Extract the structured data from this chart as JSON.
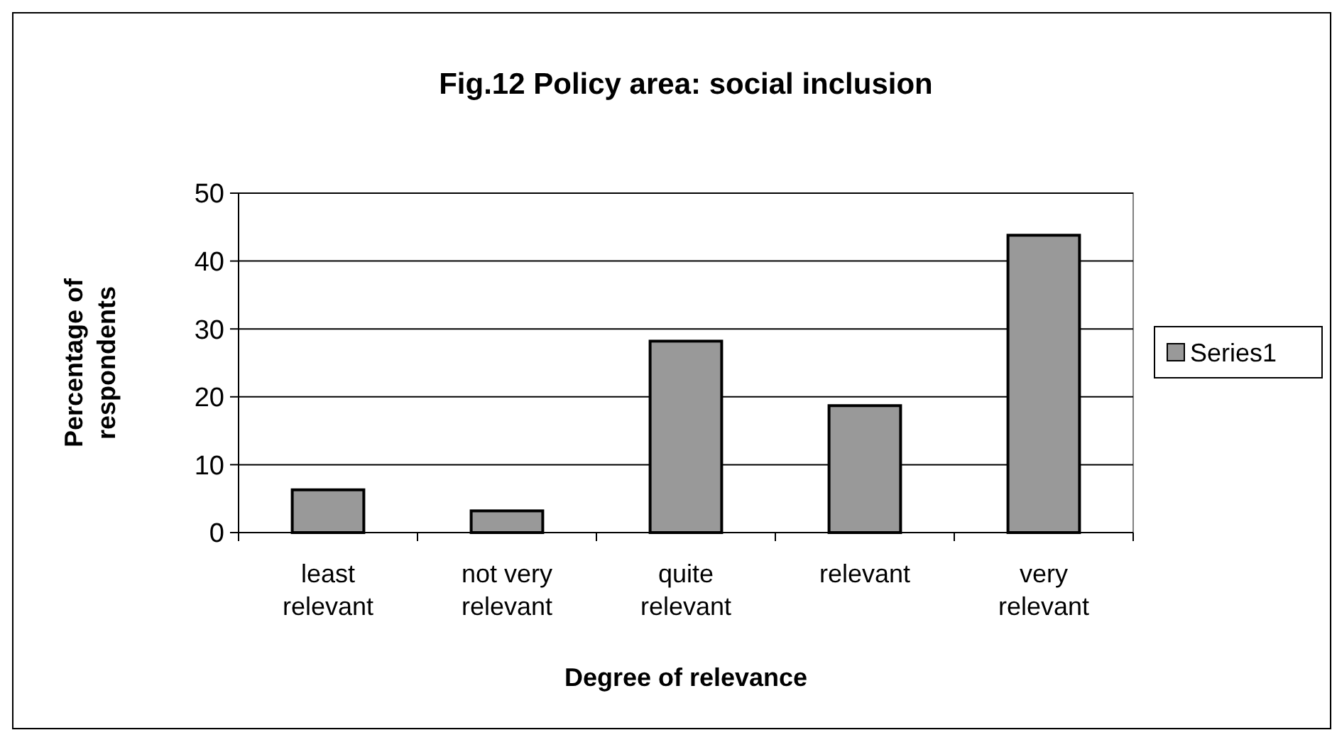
{
  "chart_data": {
    "type": "bar",
    "title": "Fig.12 Policy area: social inclusion",
    "xlabel": "Degree of relevance",
    "ylabel": "Percentage of respondents",
    "categories": [
      "least relevant",
      "not very relevant",
      "quite relevant",
      "relevant",
      "very relevant"
    ],
    "series": [
      {
        "name": "Series1",
        "color": "#999999",
        "values": [
          6.3,
          3.2,
          28.2,
          18.7,
          43.8
        ]
      }
    ],
    "ylim": [
      0,
      50
    ],
    "yticks": [
      0,
      10,
      20,
      30,
      40,
      50
    ],
    "grid": "y",
    "legend": "right"
  }
}
